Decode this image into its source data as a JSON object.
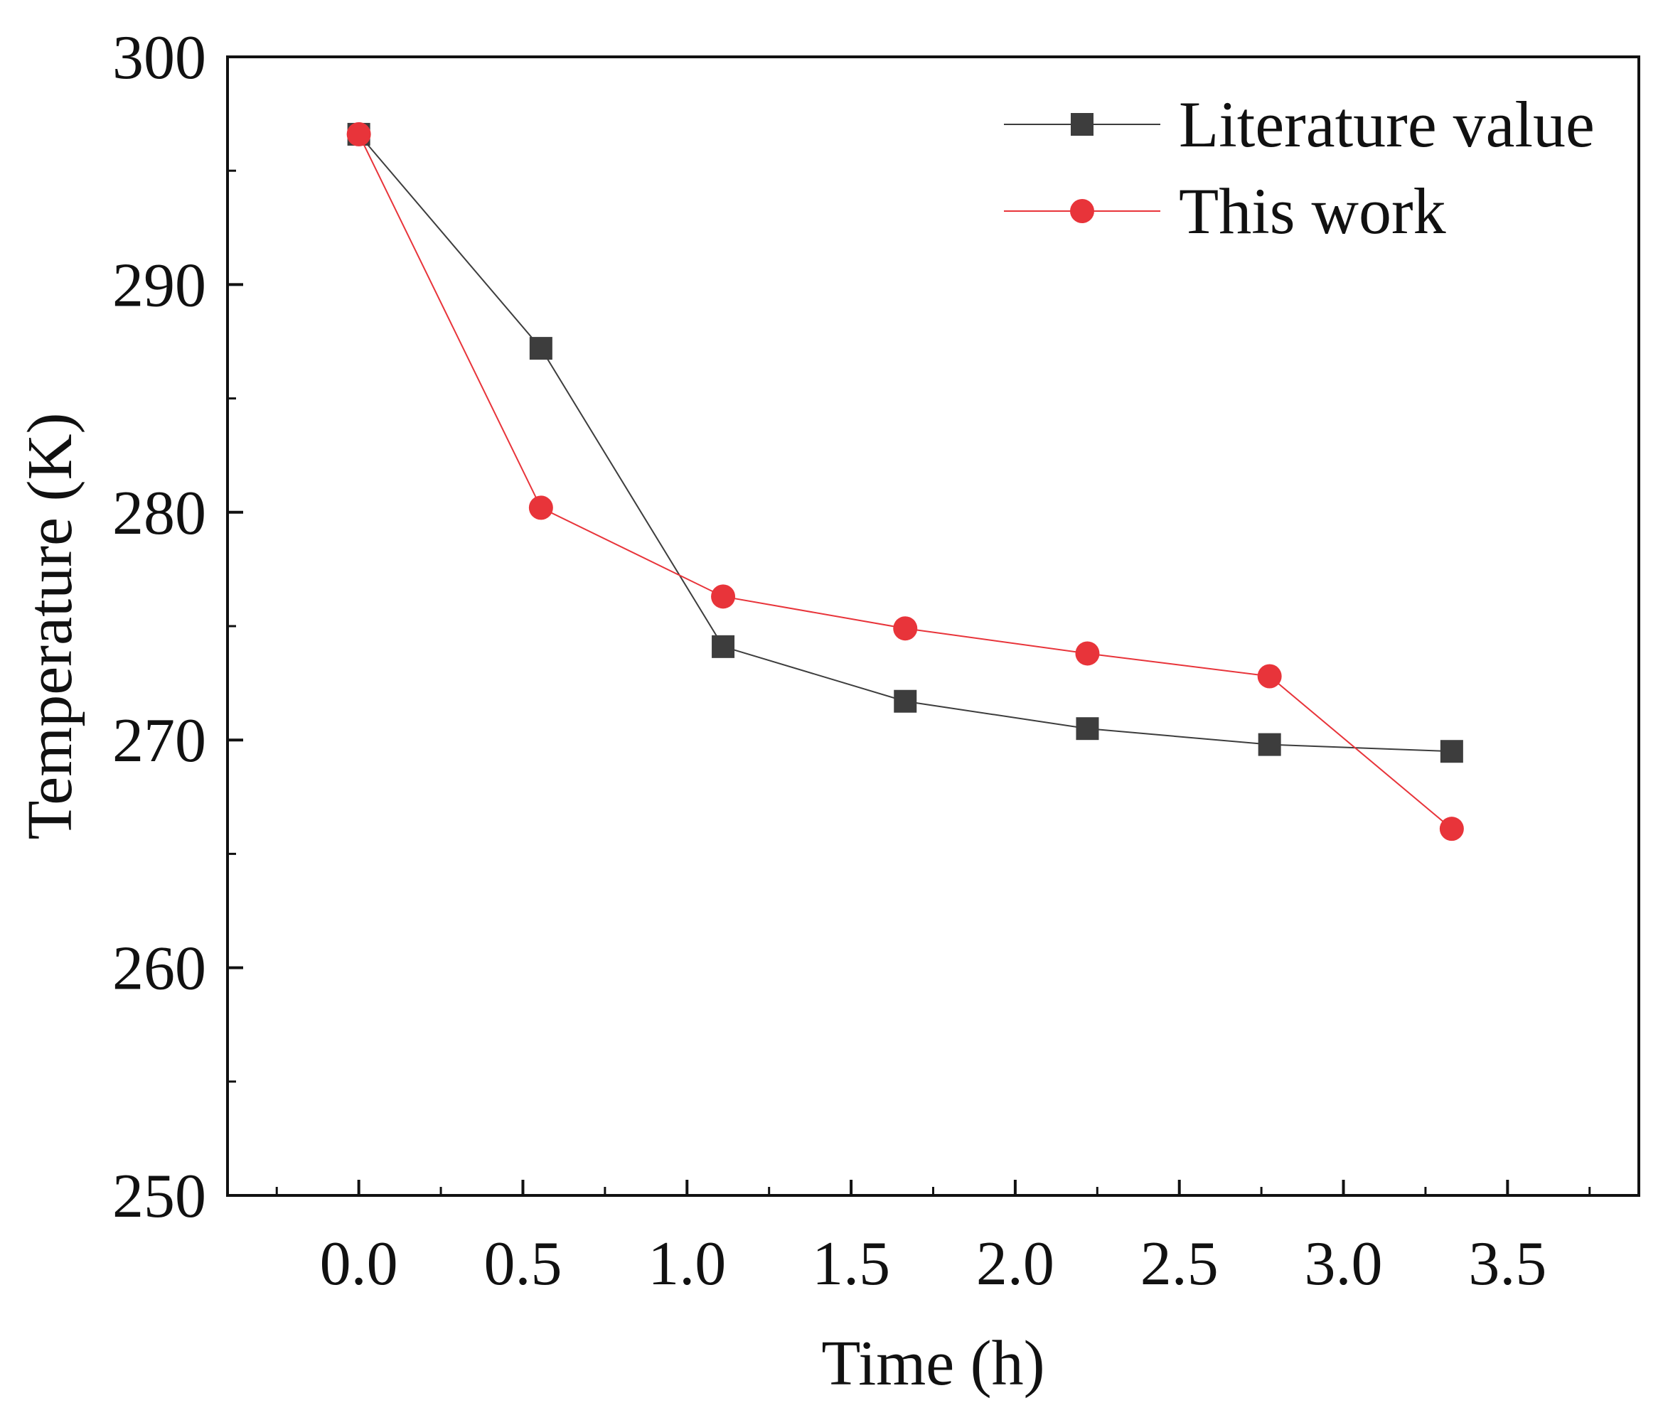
{
  "chart_data": {
    "type": "line",
    "title": "",
    "xlabel": "Time (h)",
    "ylabel": "Temperature (K)",
    "xlim": [
      -0.4,
      3.9
    ],
    "ylim": [
      250,
      300
    ],
    "x_major_ticks": [
      0.0,
      0.5,
      1.0,
      1.5,
      2.0,
      2.5,
      3.0,
      3.5
    ],
    "x_tick_labels": [
      "0.0",
      "0.5",
      "1.0",
      "1.5",
      "2.0",
      "2.5",
      "3.0",
      "3.5"
    ],
    "x_minor_ticks": [
      -0.25,
      0.25,
      0.75,
      1.25,
      1.75,
      2.25,
      2.75,
      3.25,
      3.75
    ],
    "y_major_ticks": [
      250,
      260,
      270,
      280,
      290,
      300
    ],
    "y_tick_labels": [
      "250",
      "260",
      "270",
      "280",
      "290",
      "300"
    ],
    "y_minor_ticks": [
      255,
      265,
      275,
      285,
      295
    ],
    "grid": false,
    "legend_position": "top-right",
    "series": [
      {
        "name": "Literature value",
        "color": "#3d3d3d",
        "marker": "square",
        "x": [
          0.0,
          0.555,
          1.11,
          1.665,
          2.22,
          2.775,
          3.33
        ],
        "y": [
          296.6,
          287.2,
          274.1,
          271.7,
          270.5,
          269.8,
          269.5
        ]
      },
      {
        "name": "This work",
        "color": "#e8343a",
        "marker": "circle",
        "x": [
          0.0,
          0.555,
          1.11,
          1.665,
          2.22,
          2.775,
          3.33
        ],
        "y": [
          296.6,
          280.2,
          276.3,
          274.9,
          273.8,
          272.8,
          266.1
        ]
      }
    ]
  }
}
